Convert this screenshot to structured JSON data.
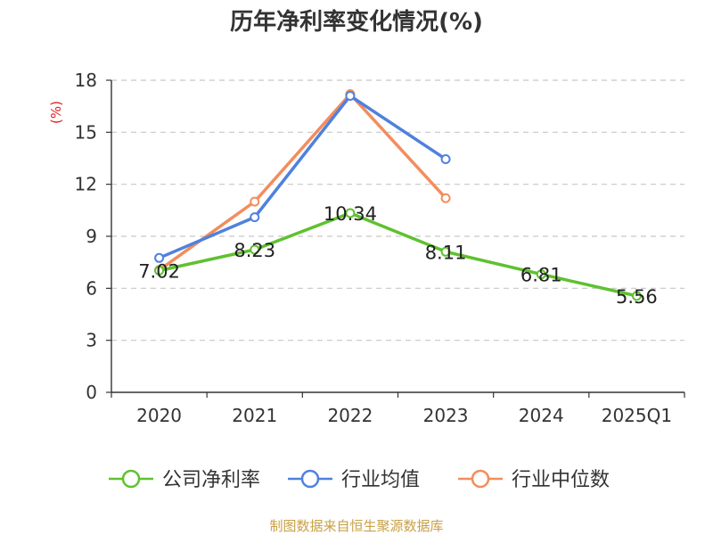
{
  "chart_data": {
    "type": "line",
    "title": "历年净利率变化情况(%)",
    "ylabel": "(%)",
    "xlabel": "",
    "categories": [
      "2020",
      "2021",
      "2022",
      "2023",
      "2024",
      "2025Q1"
    ],
    "ylim": [
      0,
      18
    ],
    "yticks": [
      0,
      3,
      6,
      9,
      12,
      15,
      18
    ],
    "grid": true,
    "legend_position": "bottom",
    "series": [
      {
        "name": "公司净利率",
        "color": "#5fc12f",
        "values": [
          7.02,
          8.23,
          10.34,
          8.11,
          6.81,
          5.56
        ],
        "show_labels": true
      },
      {
        "name": "行业均值",
        "color": "#4f81de",
        "values": [
          7.75,
          10.1,
          17.1,
          13.45,
          null,
          null
        ],
        "show_labels": false
      },
      {
        "name": "行业中位数",
        "color": "#f38d5c",
        "values": [
          7.05,
          11.0,
          17.2,
          11.2,
          null,
          null
        ],
        "show_labels": false
      }
    ],
    "source": "制图数据来自恒生聚源数据库",
    "colors": {
      "axis": "#333333",
      "grid": "#c8c8c8",
      "ylabel": "#e02020",
      "source": "#c8a046"
    }
  }
}
